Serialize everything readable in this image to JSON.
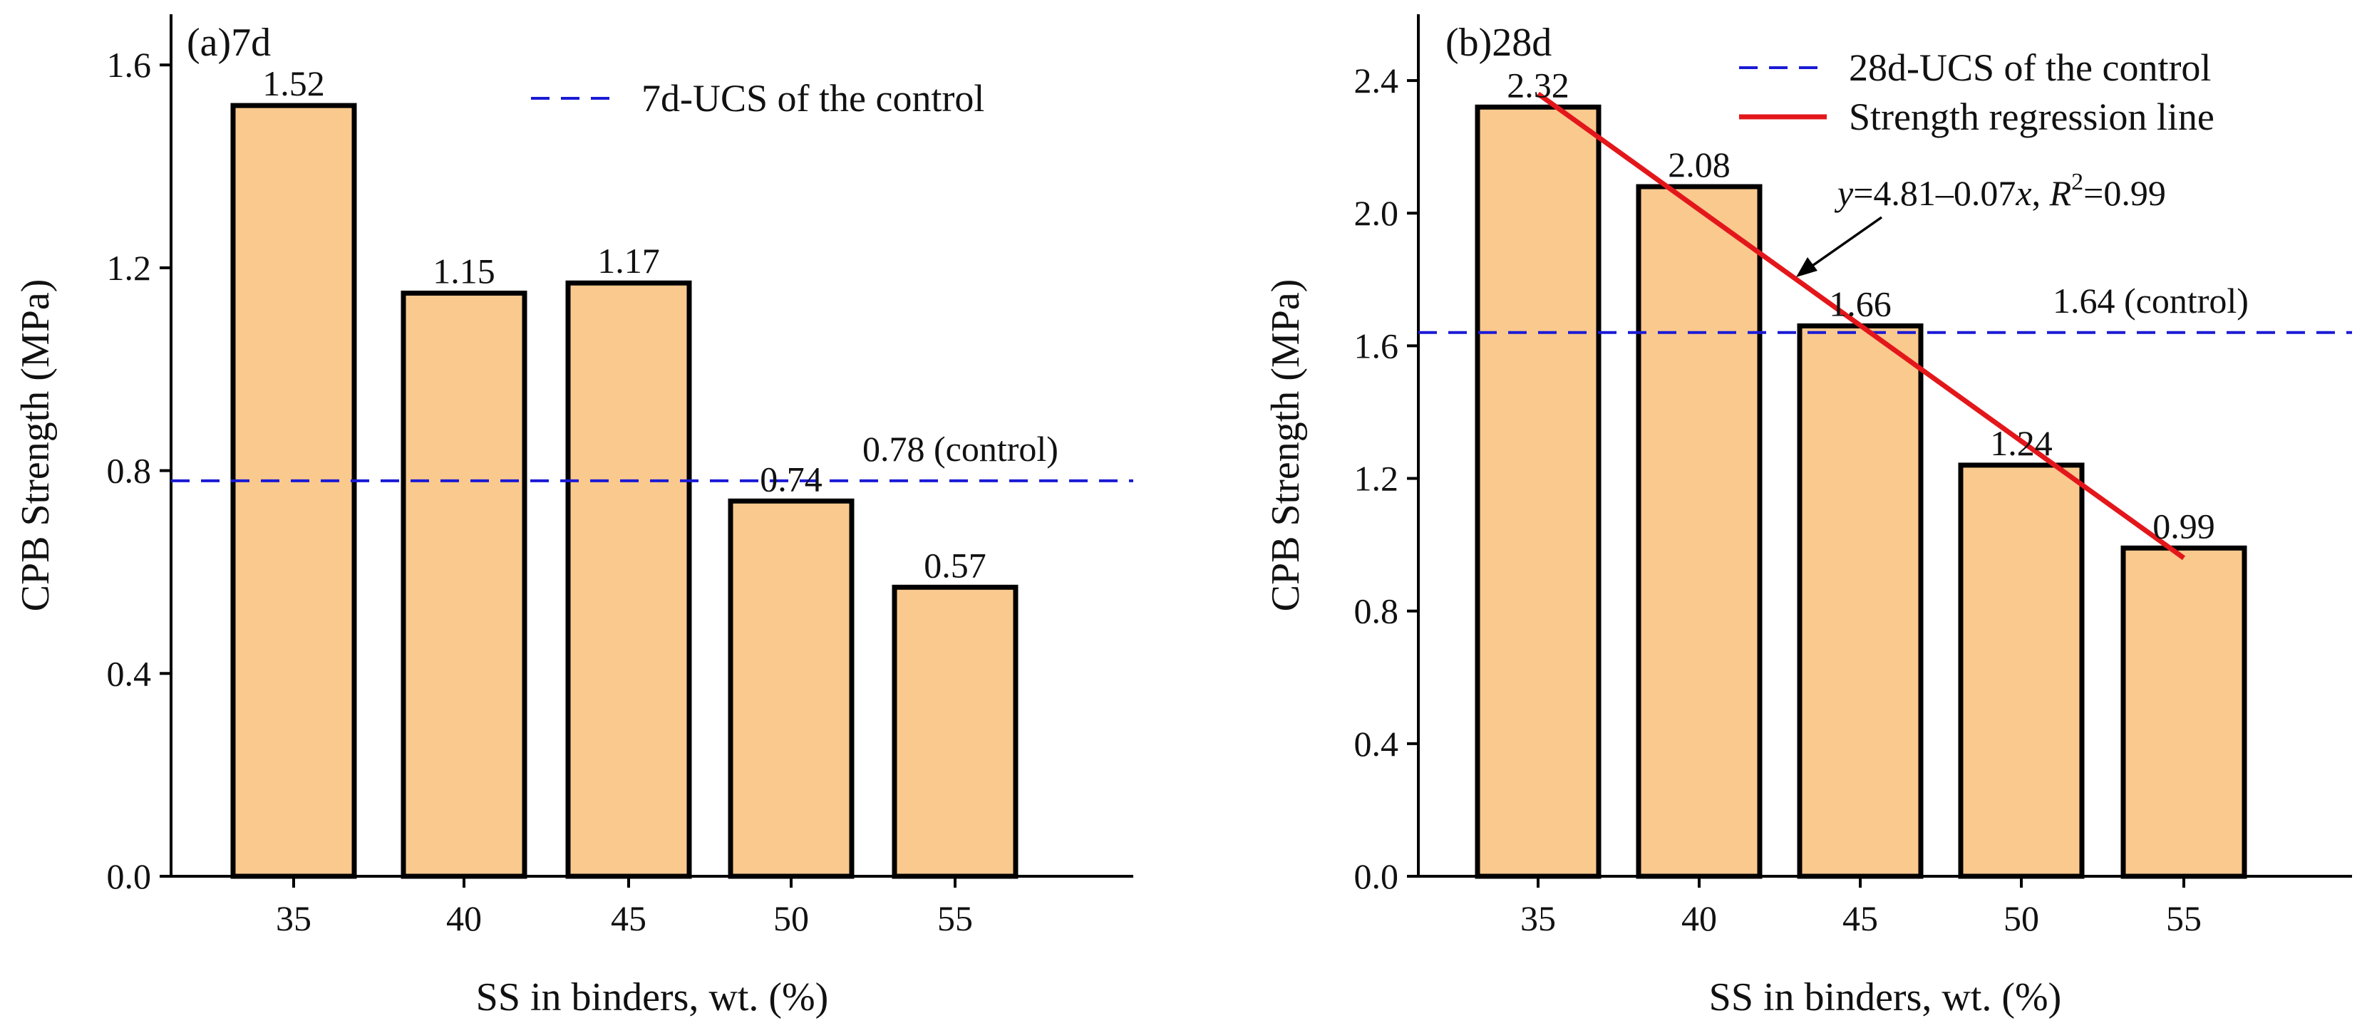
{
  "chart_data": [
    {
      "type": "bar",
      "panel": "(a)7d",
      "categories": [
        "35",
        "40",
        "45",
        "50",
        "55"
      ],
      "values": [
        1.52,
        1.15,
        1.17,
        0.74,
        0.57
      ],
      "value_labels": [
        "1.52",
        "1.15",
        "1.17",
        "0.74",
        "0.57"
      ],
      "xlabel": "SS in binders, wt. (%)",
      "ylabel": "CPB Strength (MPa)",
      "ylim": [
        0,
        1.7
      ],
      "yticks": [
        0.0,
        0.4,
        0.8,
        1.2,
        1.6
      ],
      "ytick_labels": [
        "0.0",
        "0.4",
        "0.8",
        "1.2",
        "1.6"
      ],
      "bar_color": "#FAC98E",
      "reference_line": {
        "value": 0.78,
        "label": "0.78 (control)",
        "legend": "7d-UCS of the control",
        "color": "#1a1ad6",
        "style": "dashed"
      },
      "legend_position": "top-right"
    },
    {
      "type": "bar",
      "panel": "(b)28d",
      "categories": [
        "35",
        "40",
        "45",
        "50",
        "55"
      ],
      "values": [
        2.32,
        2.08,
        1.66,
        1.24,
        0.99
      ],
      "value_labels": [
        "2.32",
        "2.08",
        "1.66",
        "1.24",
        "0.99"
      ],
      "xlabel": "SS in binders, wt. (%)",
      "ylabel": "CPB Strength (MPa)",
      "ylim": [
        0,
        2.6
      ],
      "yticks": [
        0.0,
        0.4,
        0.8,
        1.2,
        1.6,
        2.0,
        2.4
      ],
      "ytick_labels": [
        "0.0",
        "0.4",
        "0.8",
        "1.2",
        "1.6",
        "2.0",
        "2.4"
      ],
      "bar_color": "#FAC98E",
      "reference_line": {
        "value": 1.64,
        "label": "1.64 (control)",
        "legend": "28d-UCS of the control",
        "color": "#1a1ad6",
        "style": "dashed"
      },
      "regression": {
        "legend": "Strength regression line",
        "color": "#e3171b",
        "start": {
          "x": 35,
          "y": 2.36
        },
        "end": {
          "x": 55,
          "y": 0.96
        },
        "equation": {
          "y_var": "y",
          "eq_part": "=4.81–0.07",
          "x_var": "x",
          "sep": ", ",
          "r_var": "R",
          "r_exp": "2",
          "r_val": "=0.99"
        }
      },
      "legend_position": "top-right"
    }
  ]
}
